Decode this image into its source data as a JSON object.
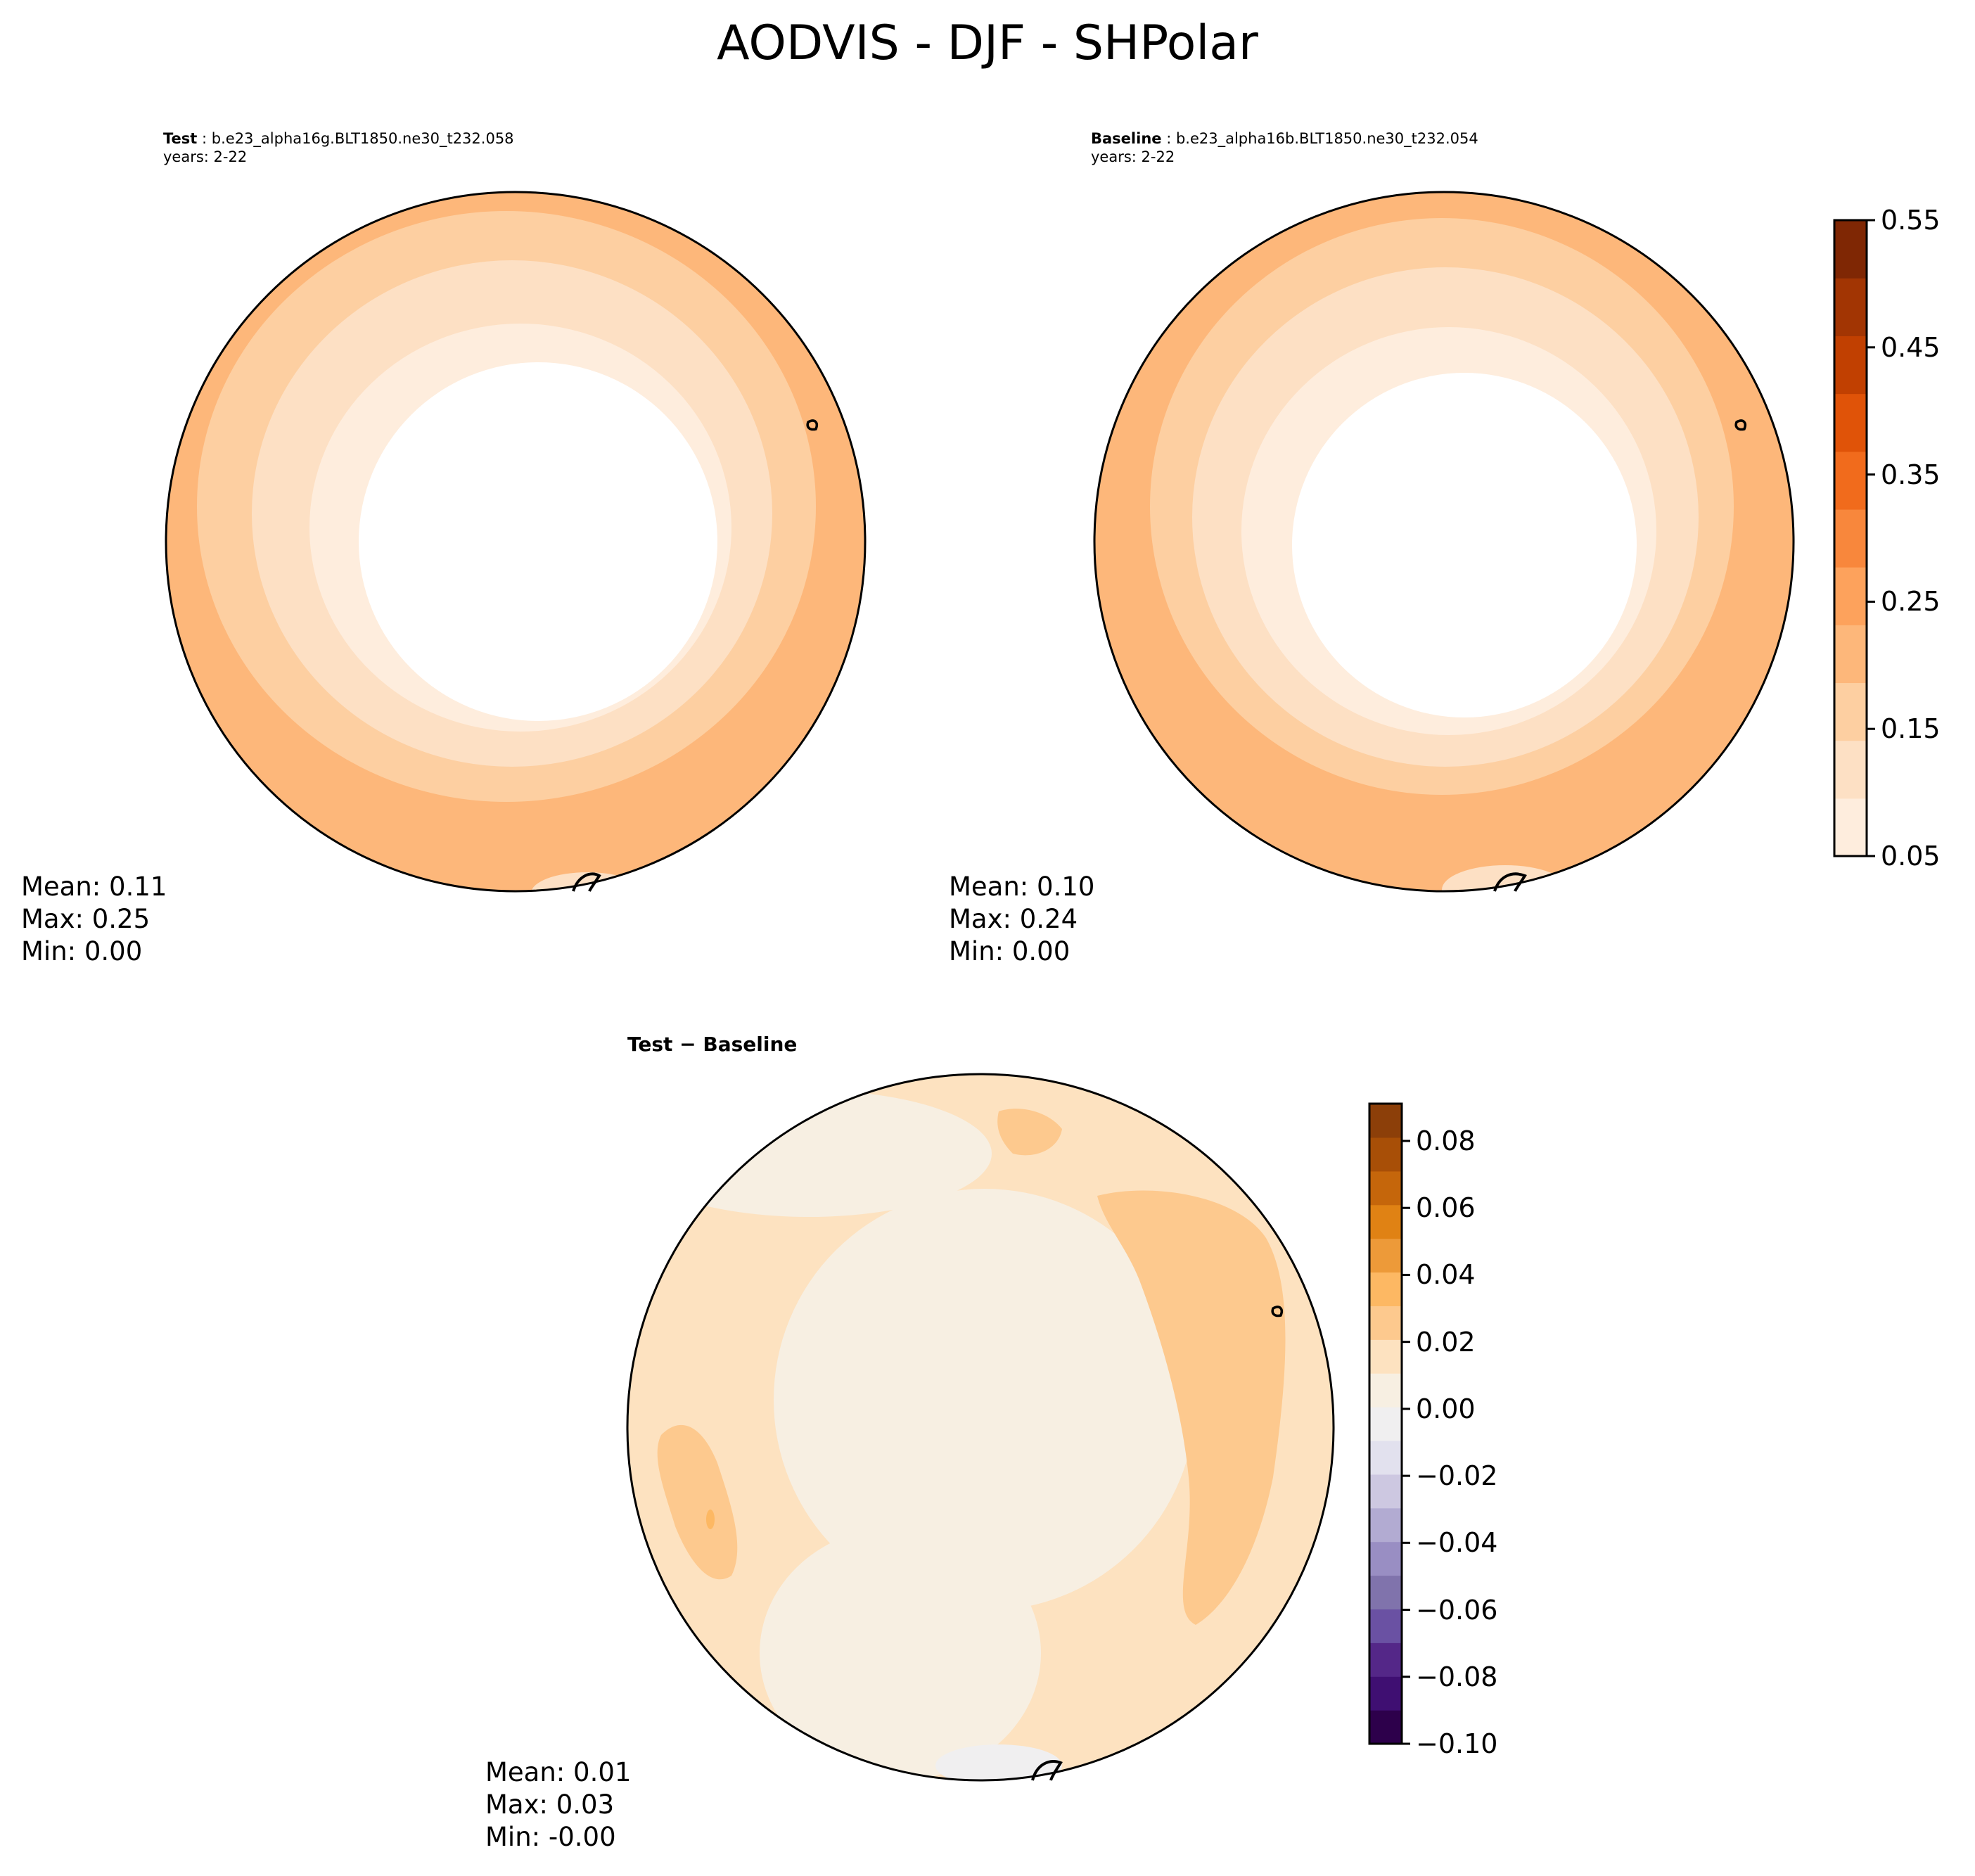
{
  "title": "AODVIS - DJF - SHPolar",
  "panels": {
    "test": {
      "label": "Test",
      "case": "b.e23_alpha16g.BLT1850.ne30_t232.058",
      "years": "years: 2-22",
      "mean": "Mean:  0.11",
      "max": "Max:  0.25",
      "min": "Min:  0.00"
    },
    "baseline": {
      "label": "Baseline",
      "case": "b.e23_alpha16b.BLT1850.ne30_t232.054",
      "years": "years: 2-22",
      "mean": "Mean:  0.10",
      "max": "Max:  0.24",
      "min": "Min:  0.00"
    },
    "diff": {
      "label": "Test − Baseline",
      "mean": "Mean:  0.01",
      "max": "Max:  0.03",
      "min": "Min: -0.00"
    }
  },
  "colorbars": {
    "main": {
      "ticks": [
        "0.05",
        "0.15",
        "0.25",
        "0.35",
        "0.45",
        "0.55"
      ],
      "colors": [
        "#feeddd",
        "#fde0c4",
        "#fdcfa1",
        "#fdb77a",
        "#fda25c",
        "#f8873c",
        "#f16b1c",
        "#e05308",
        "#c14001",
        "#a23503",
        "#7f2704"
      ]
    },
    "diff": {
      "ticks": [
        "0.08",
        "0.06",
        "0.04",
        "0.02",
        "0.00",
        "−0.02",
        "−0.04",
        "−0.06",
        "−0.08",
        "−0.10"
      ],
      "colors": [
        "#2d004b",
        "#3f0f72",
        "#542788",
        "#6a51a3",
        "#8073ac",
        "#998ec3",
        "#b2abd2",
        "#cdc8e1",
        "#e2e1ee",
        "#f0eff0",
        "#f7efe2",
        "#fde2c0",
        "#fdc98e",
        "#fdb863",
        "#ed9a39",
        "#e08214",
        "#c5660b",
        "#a84f07",
        "#8c3f09"
      ]
    }
  },
  "map_colors": {
    "c0": "#ffffff",
    "c1": "#feeddd",
    "c2": "#fde0c4",
    "c3": "#fdcfa1",
    "c4": "#fdb77a",
    "d0": "#f0eff0",
    "d1": "#f7efe2",
    "d2": "#fde2c0",
    "d3": "#fdc98e",
    "d4": "#fdb863"
  }
}
